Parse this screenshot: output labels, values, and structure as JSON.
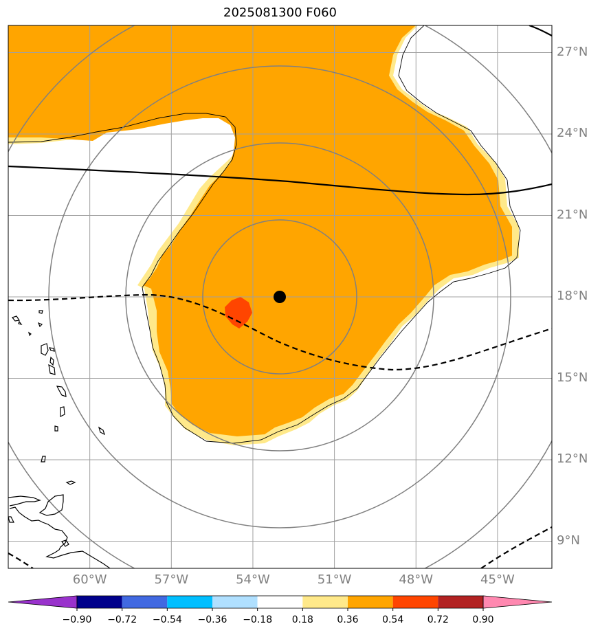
{
  "title": "2025081300 F060",
  "map": {
    "lat_ticks": [
      {
        "label": "27°N",
        "lat": 27
      },
      {
        "label": "24°N",
        "lat": 24
      },
      {
        "label": "21°N",
        "lat": 21
      },
      {
        "label": "18°N",
        "lat": 18
      },
      {
        "label": "15°N",
        "lat": 15
      },
      {
        "label": "12°N",
        "lat": 12
      },
      {
        "label": "9°N",
        "lat": 9
      }
    ],
    "lon_ticks": [
      {
        "label": "60°W",
        "lon": -60
      },
      {
        "label": "57°W",
        "lon": -57
      },
      {
        "label": "54°W",
        "lon": -54
      },
      {
        "label": "51°W",
        "lon": -51
      },
      {
        "label": "48°W",
        "lon": -48
      },
      {
        "label": "45°W",
        "lon": -45
      }
    ],
    "center": {
      "lat": 18.1,
      "lon": -53.0
    },
    "extent": {
      "lon_min": -63.0,
      "lon_max": -43.0,
      "lat_min": 8.0,
      "lat_max": 28.0
    },
    "range_rings_count": 4
  },
  "colorbar": {
    "levels": [
      "−0.90",
      "−0.72",
      "−0.54",
      "−0.36",
      "−0.18",
      "0.18",
      "0.36",
      "0.54",
      "0.72",
      "0.90"
    ],
    "colors": [
      "#9932cc",
      "#00008b",
      "#4169e1",
      "#00bfff",
      "#b0e0ff",
      "#ffffff",
      "#ffe98a",
      "#ffa500",
      "#ff4500",
      "#b22222",
      "#ff88b0"
    ]
  },
  "colors": {
    "shade_orange": "#ffa500",
    "shade_yellow": "#ffe98a",
    "shade_red": "#ff4500",
    "grid": "#a0a0a0",
    "rings": "#808080"
  }
}
